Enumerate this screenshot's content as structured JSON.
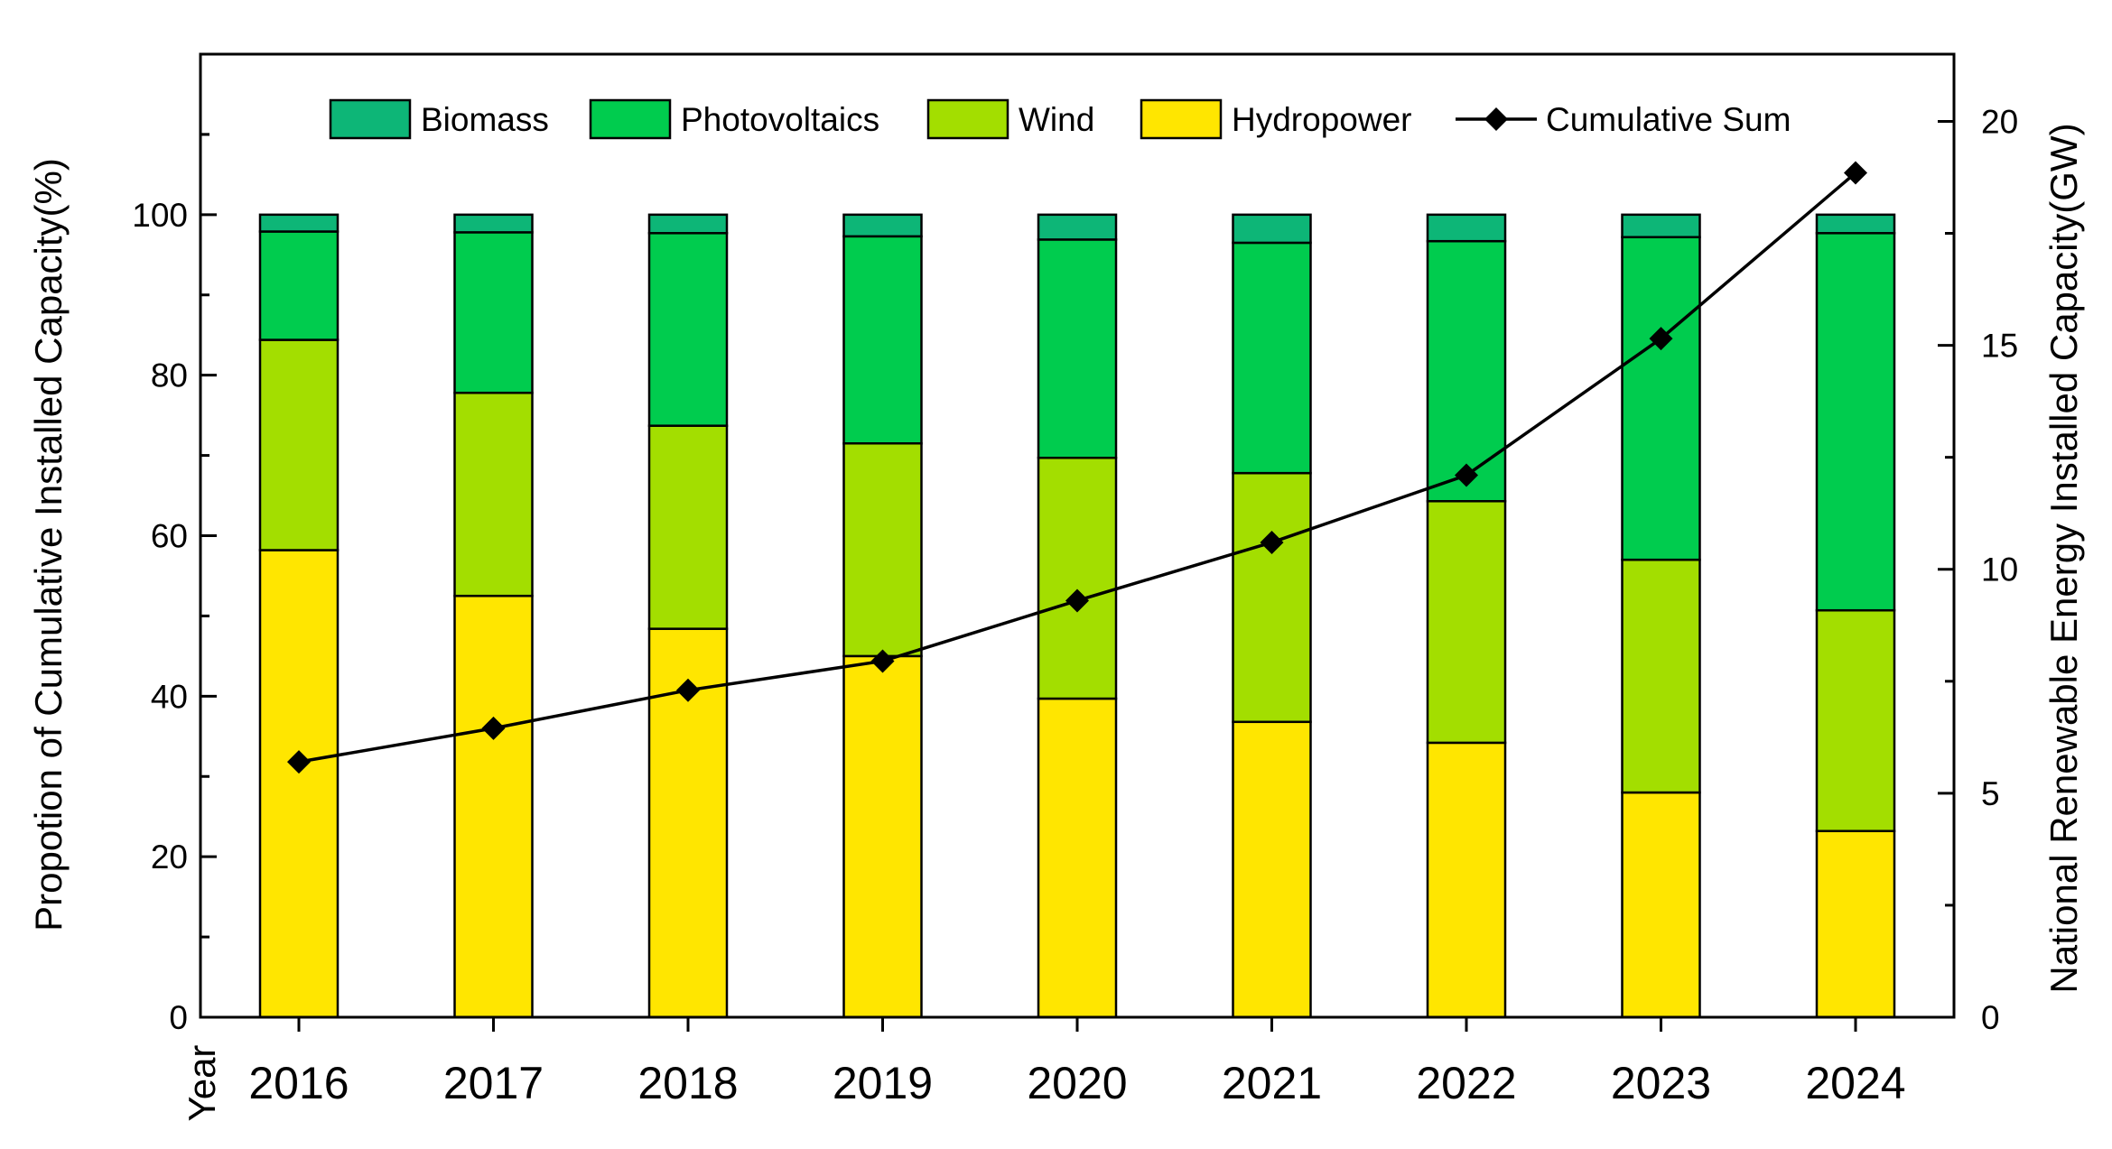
{
  "chart_data": {
    "type": "bar",
    "subtype": "stacked-percent-bar-with-line",
    "x_label": "Year",
    "categories": [
      "2016",
      "2017",
      "2018",
      "2019",
      "2020",
      "2021",
      "2022",
      "2023",
      "2024"
    ],
    "ylabel_left": "Propotion of Cumulative Installed Capacity(%)",
    "ylabel_right": "National Renewable Energy Installed Capacity(GW)",
    "ylim_left": [
      0,
      120
    ],
    "yticks_left": [
      0,
      20,
      40,
      60,
      80,
      100
    ],
    "ylim_right": [
      0,
      21.5
    ],
    "yticks_right": [
      0,
      5,
      10,
      15,
      20
    ],
    "series": [
      {
        "name": "Hydropower",
        "color": "#FFE600",
        "values": [
          58.2,
          52.5,
          48.4,
          45.0,
          39.7,
          36.8,
          34.2,
          28.0,
          23.2
        ]
      },
      {
        "name": "Wind",
        "color": "#A3DE00",
        "values": [
          26.2,
          25.3,
          25.3,
          26.5,
          30.0,
          31.0,
          30.1,
          29.0,
          27.5
        ]
      },
      {
        "name": "Photovoltaics",
        "color": "#00CC4E",
        "values": [
          13.5,
          20.0,
          24.0,
          25.8,
          27.2,
          28.7,
          32.4,
          40.2,
          47.0
        ]
      },
      {
        "name": "Biomass",
        "color": "#0DB677",
        "values": [
          2.1,
          2.2,
          2.3,
          2.7,
          3.1,
          3.5,
          3.3,
          2.8,
          2.3
        ]
      }
    ],
    "line_series": {
      "name": "Cumulative Sum",
      "axis": "right",
      "color": "#000000",
      "values": [
        5.7,
        6.45,
        7.3,
        7.95,
        9.3,
        10.6,
        12.1,
        15.15,
        18.85
      ]
    },
    "legend": [
      "Biomass",
      "Photovoltaics",
      "Wind",
      "Hydropower",
      "Cumulative Sum"
    ],
    "legend_position": "top"
  }
}
